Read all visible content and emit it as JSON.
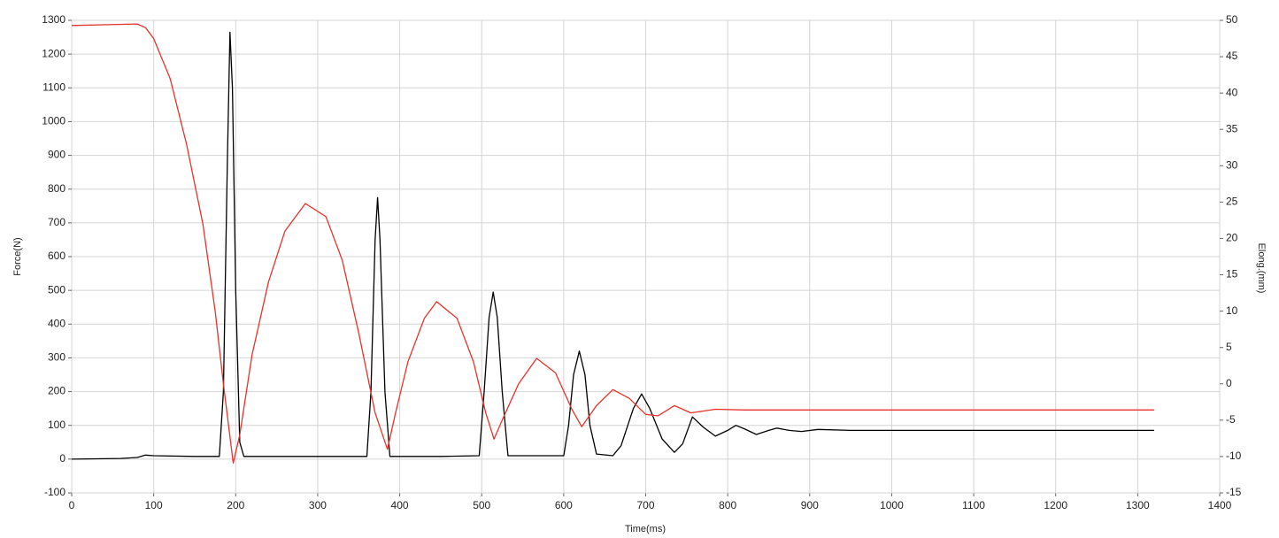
{
  "chart_data": {
    "type": "line",
    "xlabel": "Time(ms)",
    "ylabel": "Force(N)",
    "y2label": "Elong.(mm)",
    "xlim": [
      0,
      1400
    ],
    "xticks": [
      0,
      100,
      200,
      300,
      400,
      500,
      600,
      700,
      800,
      900,
      1000,
      1100,
      1200,
      1300,
      1400
    ],
    "ylim": [
      -100,
      1300
    ],
    "yticks": [
      -100,
      0,
      100,
      200,
      300,
      400,
      500,
      600,
      700,
      800,
      900,
      1000,
      1100,
      1200,
      1300
    ],
    "y2lim": [
      -15,
      50
    ],
    "y2ticks": [
      -15,
      -10,
      -5,
      0,
      5,
      10,
      15,
      20,
      25,
      30,
      35,
      40,
      45,
      50
    ],
    "grid": true,
    "series": [
      {
        "name": "Force",
        "color": "#000000",
        "x": [
          0,
          60,
          80,
          90,
          100,
          150,
          180,
          185,
          190,
          193,
          196,
          200,
          205,
          210,
          300,
          360,
          365,
          370,
          373,
          376,
          382,
          388,
          450,
          497,
          503,
          509,
          514,
          519,
          525,
          532,
          600,
          606,
          612,
          619,
          626,
          632,
          640,
          660,
          670,
          685,
          695,
          705,
          720,
          735,
          745,
          757,
          770,
          785,
          800,
          810,
          820,
          835,
          850,
          860,
          875,
          890,
          910,
          950,
          1000,
          1100,
          1200,
          1320
        ],
        "values": [
          0,
          2,
          5,
          12,
          10,
          8,
          8,
          200,
          900,
          1265,
          1100,
          500,
          50,
          8,
          8,
          8,
          200,
          650,
          775,
          650,
          200,
          8,
          8,
          10,
          200,
          420,
          495,
          420,
          200,
          10,
          10,
          100,
          250,
          320,
          250,
          100,
          15,
          10,
          40,
          150,
          193,
          150,
          60,
          20,
          45,
          125,
          95,
          68,
          85,
          100,
          90,
          73,
          85,
          92,
          85,
          82,
          88,
          85,
          85,
          85,
          85,
          85
        ]
      },
      {
        "name": "Elong",
        "color": "#e8312a",
        "axis": "y2",
        "x": [
          0,
          80,
          90,
          100,
          120,
          140,
          160,
          175,
          185,
          197,
          205,
          220,
          240,
          260,
          285,
          310,
          330,
          350,
          370,
          385,
          395,
          410,
          430,
          445,
          470,
          490,
          505,
          515,
          525,
          545,
          567,
          590,
          610,
          622,
          640,
          660,
          680,
          700,
          715,
          735,
          755,
          785,
          820,
          1000,
          1320
        ],
        "values": [
          49.3,
          49.5,
          49,
          47.5,
          42,
          33,
          22,
          10,
          0,
          -10.9,
          -7,
          4,
          14,
          21,
          24.8,
          23,
          17,
          7,
          -4,
          -9,
          -4,
          3,
          9,
          11.3,
          9,
          3,
          -4,
          -7.6,
          -5,
          0,
          3.5,
          1.5,
          -3.5,
          -5.9,
          -3,
          -0.8,
          -2,
          -4.2,
          -4.4,
          -3,
          -4,
          -3.5,
          -3.6,
          -3.6,
          -3.6
        ]
      }
    ]
  }
}
